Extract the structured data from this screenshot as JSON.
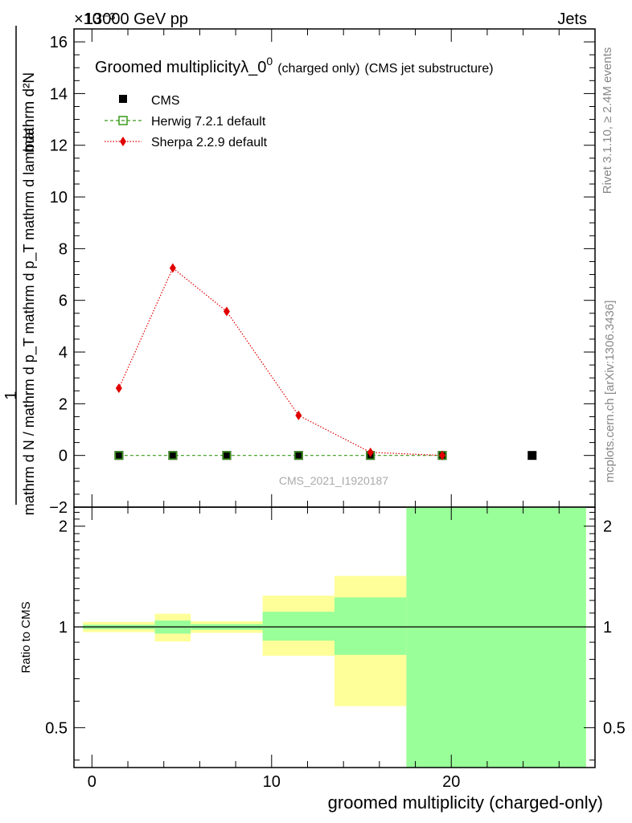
{
  "header": {
    "beam_label": "13000 GeV pp",
    "process_label": "Jets",
    "exponent_label": "×10⁻³",
    "rivet_label": "Rivet 3.1.10, ≥ 2.4M events",
    "mcplots_label": "mcplots.cern.ch [arXiv:1306.3436]",
    "watermark": "CMS_2021_I1920187"
  },
  "main_plot": {
    "title_main": "Groomed multiplicityλ_0",
    "title_sup": "0",
    "title_small": "(charged only)",
    "title_suffix": "(CMS jet substructure)",
    "ylabel_one": "1",
    "ylabel_numerator": "mathrm d²N",
    "ylabel_denominator": "mathrm d N / mathrm d p_T mathrm d p_T mathrm d lambda",
    "legend": [
      {
        "label": "CMS"
      },
      {
        "label": "Herwig 7.2.1 default"
      },
      {
        "label": "Sherpa 2.2.9 default"
      }
    ]
  },
  "ratio_plot": {
    "ylabel": "Ratio to CMS"
  },
  "xlabel": "groomed multiplicity (charged-only)",
  "chart_data": [
    {
      "type": "scatter",
      "xlim": [
        -1,
        28
      ],
      "ylim": [
        -2,
        16.5
      ],
      "y_scale_factor": "1e-3",
      "x_ticks": [
        0,
        10,
        20
      ],
      "y_ticks": [
        -2,
        0,
        2,
        4,
        6,
        8,
        10,
        12,
        14,
        16
      ],
      "series": [
        {
          "name": "CMS",
          "color": "#000000",
          "x": [
            1.5,
            4.5,
            7.5,
            11.5,
            15.5,
            19.5,
            24.5
          ],
          "y": [
            0,
            0,
            0,
            0,
            0,
            0,
            0
          ]
        },
        {
          "name": "Herwig 7.2.1 default",
          "color": "#3a9a1a",
          "x": [
            1.5,
            4.5,
            7.5,
            11.5,
            15.5,
            19.5
          ],
          "y": [
            0,
            0,
            0,
            0,
            0,
            0
          ]
        },
        {
          "name": "Sherpa 2.2.9 default",
          "color": "#e00000",
          "x": [
            1.5,
            4.5,
            7.5,
            11.5,
            15.5,
            19.5
          ],
          "y": [
            2.6,
            7.25,
            5.57,
            1.55,
            0.12,
            0.0
          ]
        }
      ]
    },
    {
      "type": "band",
      "xlim": [
        -1,
        28
      ],
      "ylim": [
        0.38,
        2.28
      ],
      "y_ticks": [
        0.5,
        1,
        2
      ],
      "reference_line": 1,
      "bins": [
        {
          "x0": -0.5,
          "x1": 3.5,
          "stat": [
            0.985,
            1.015
          ],
          "total": [
            0.965,
            1.035
          ]
        },
        {
          "x0": 3.5,
          "x1": 5.5,
          "stat": [
            0.955,
            1.045
          ],
          "total": [
            0.905,
            1.095
          ]
        },
        {
          "x0": 5.5,
          "x1": 9.5,
          "stat": [
            0.98,
            1.02
          ],
          "total": [
            0.96,
            1.04
          ]
        },
        {
          "x0": 9.5,
          "x1": 13.5,
          "stat": [
            0.91,
            1.11
          ],
          "total": [
            0.82,
            1.24
          ]
        },
        {
          "x0": 13.5,
          "x1": 17.5,
          "stat": [
            0.825,
            1.225
          ],
          "total": [
            0.58,
            1.42
          ]
        },
        {
          "x0": 17.5,
          "x1": 27.5,
          "stat": [
            0.38,
            2.28
          ],
          "total": [
            0.38,
            2.28
          ]
        }
      ]
    }
  ],
  "colors": {
    "stat_band": "#99ff99",
    "total_band": "#ffff99",
    "sherpa": "#e00000",
    "herwig": "#3a9a1a",
    "cms": "#000000",
    "side_label": "#888888",
    "watermark": "#aaaaaa"
  }
}
